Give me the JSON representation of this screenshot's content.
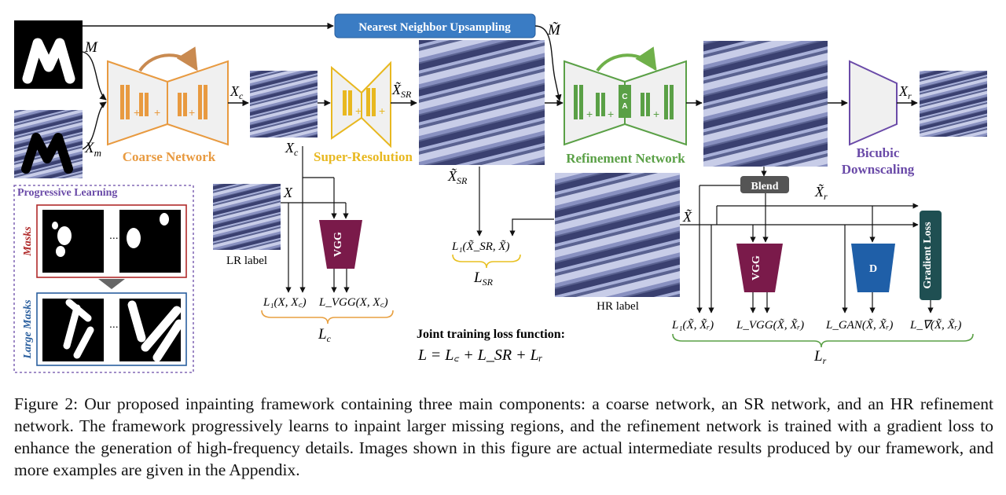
{
  "figure": {
    "top_box_label": "Nearest Neighbor Upsampling",
    "m_tilde": "M̃",
    "input_mask": "M",
    "input_masked": "X",
    "input_masked_sub": "m",
    "xc": "X",
    "xc_sub": "c",
    "xsr": "X̃",
    "xsr_sub": "SR",
    "xr": "X",
    "xr_sub": "r",
    "coarse_label": "Coarse Network",
    "sr_label": "Super-Resolution",
    "refine_label": "Refinement Network",
    "bicubic_label_1": "Bicubic",
    "bicubic_label_2": "Downscaling",
    "ca_label": "CA",
    "progressive_title": "Progressive Learning",
    "masks_label": "Masks",
    "large_masks_label": "Large Masks",
    "ellipsis": "...",
    "lr_label": "LR label",
    "hr_label": "HR label",
    "x_label": "X",
    "x_tilde_label": "X̃",
    "x_tilde_r": "X̃",
    "x_tilde_r_sub": "r",
    "vgg_label": "VGG",
    "blend_label": "Blend",
    "d_label": "D",
    "grad_loss_label": "Gradient Loss",
    "loss_l1_c": "L₁(X, X꜀)",
    "loss_vgg_c": "L_VGG(X, X꜀)",
    "lc": "L",
    "lc_sub": "c",
    "loss_sr": "L₁(X̃_SR, X̃)",
    "lsr": "L",
    "lsr_sub": "SR",
    "loss_l1_r": "L₁(X̃, X̃ᵣ)",
    "loss_vgg_r": "L_VGG(X̃, X̃ᵣ)",
    "loss_gan_r": "L_GAN(X̃, X̃ᵣ)",
    "loss_grad_r": "L_∇(X̃, X̃ᵣ)",
    "lr": "L",
    "lr_sub": "r",
    "joint_title": "Joint training loss function:",
    "joint_formula": "L = L꜀ + L_SR + Lᵣ",
    "colors": {
      "coarse": "#e89a40",
      "sr": "#e8b820",
      "refine": "#5aa046",
      "bicubic": "#6a4aa8",
      "top_box": "#3a7cc4",
      "vgg": "#7a1a4a",
      "d": "#1f5fa8",
      "grad": "#1f4f52",
      "blend": "#555555",
      "masks": "#b02a2a",
      "large_masks": "#2a5f9e",
      "progressive": "#6a4aa8",
      "brace_c": "#e8a040",
      "brace_sr": "#e8c020",
      "brace_r": "#5aa046"
    }
  },
  "caption": "Figure 2: Our proposed inpainting framework containing three main components: a coarse network, an SR network, and an HR refinement network. The framework progressively learns to inpaint larger missing regions, and the refinement network is trained with a gradient loss to enhance the generation of high-frequency details. Images shown in this figure are actual intermediate results produced by our framework, and more examples are given in the Appendix."
}
